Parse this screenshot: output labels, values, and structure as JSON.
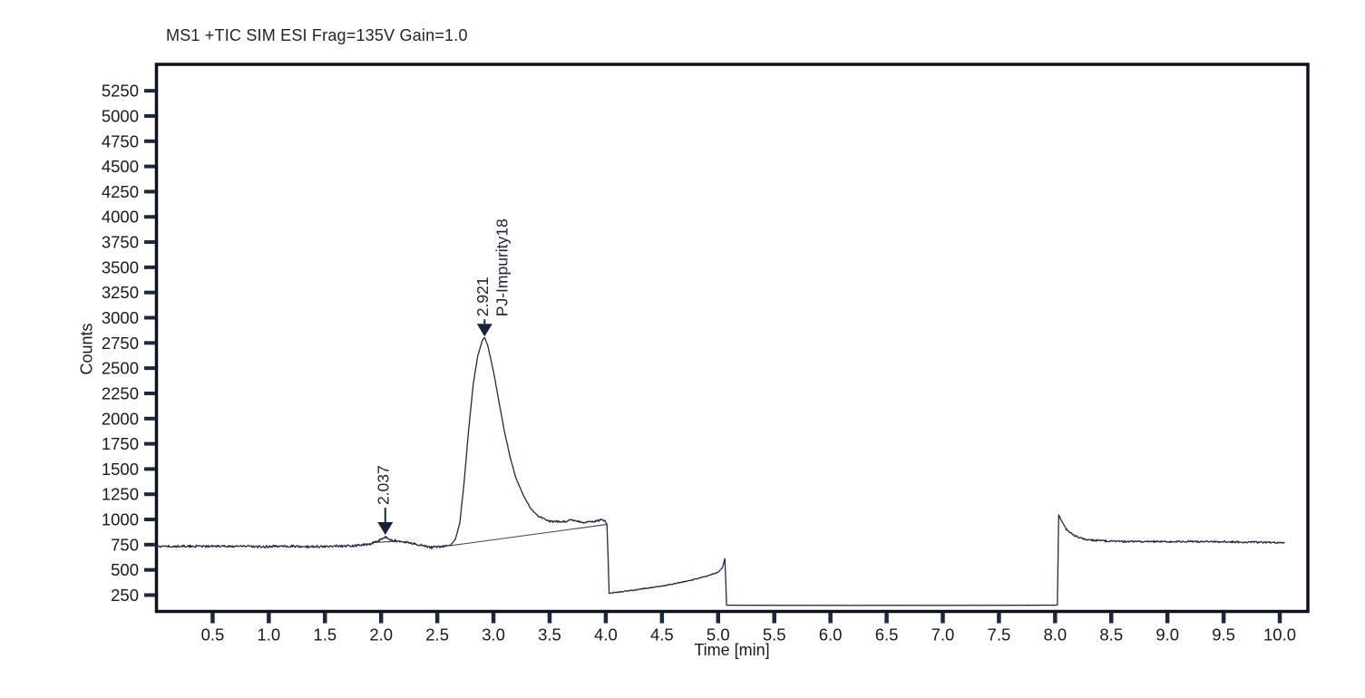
{
  "window": {
    "background": "#ffffff"
  },
  "chart_data": {
    "type": "line",
    "title": "MS1 +TIC SIM ESI Frag=135V Gain=1.0",
    "xlabel": "Time [min]",
    "ylabel": "Counts",
    "xlim": [
      0,
      10.25
    ],
    "ylim": [
      88,
      5512
    ],
    "xticks": [
      0.5,
      1.0,
      1.5,
      2.0,
      2.5,
      3.0,
      3.5,
      4.0,
      4.5,
      5.0,
      5.5,
      6.0,
      6.5,
      7.0,
      7.5,
      8.0,
      8.5,
      9.0,
      9.5,
      10.0
    ],
    "yticks": [
      250,
      500,
      750,
      1000,
      1250,
      1500,
      1750,
      2000,
      2250,
      2500,
      2750,
      3000,
      3250,
      3500,
      3750,
      4000,
      4250,
      4500,
      4750,
      5000,
      5250
    ],
    "grid": false,
    "legend": null,
    "colors": {
      "trace": "#1e2a44",
      "frame": "#0c1120",
      "tick": "#1c2740",
      "tick_label": "#1a1a1a",
      "annotation": "#18223a",
      "baseline_line": "#3a4458"
    },
    "series": [
      {
        "name": "TIC",
        "points": [
          [
            0,
            735
          ],
          [
            0.3,
            732
          ],
          [
            0.6,
            736
          ],
          [
            0.9,
            729
          ],
          [
            1.2,
            734
          ],
          [
            1.5,
            731
          ],
          [
            1.75,
            738
          ],
          [
            1.9,
            755
          ],
          [
            1.98,
            790
          ],
          [
            2.037,
            828
          ],
          [
            2.08,
            800
          ],
          [
            2.15,
            785
          ],
          [
            2.25,
            770
          ],
          [
            2.35,
            745
          ],
          [
            2.45,
            722
          ],
          [
            2.52,
            730
          ],
          [
            2.58,
            738
          ],
          [
            2.62,
            745
          ],
          [
            2.66,
            800
          ],
          [
            2.7,
            960
          ],
          [
            2.74,
            1380
          ],
          [
            2.78,
            1900
          ],
          [
            2.82,
            2340
          ],
          [
            2.86,
            2620
          ],
          [
            2.9,
            2770
          ],
          [
            2.921,
            2805
          ],
          [
            2.95,
            2720
          ],
          [
            3.0,
            2470
          ],
          [
            3.05,
            2160
          ],
          [
            3.1,
            1860
          ],
          [
            3.15,
            1610
          ],
          [
            3.2,
            1410
          ],
          [
            3.27,
            1230
          ],
          [
            3.33,
            1110
          ],
          [
            3.4,
            1030
          ],
          [
            3.5,
            980
          ],
          [
            3.6,
            975
          ],
          [
            3.7,
            995
          ],
          [
            3.8,
            970
          ],
          [
            3.9,
            980
          ],
          [
            3.98,
            995
          ],
          [
            4.01,
            955
          ],
          [
            4.02,
            640
          ],
          [
            4.03,
            268
          ],
          [
            4.15,
            285
          ],
          [
            4.35,
            315
          ],
          [
            4.55,
            350
          ],
          [
            4.75,
            395
          ],
          [
            4.9,
            440
          ],
          [
            5.0,
            475
          ],
          [
            5.04,
            525
          ],
          [
            5.06,
            612
          ],
          [
            5.068,
            400
          ],
          [
            5.075,
            150
          ],
          [
            5.3,
            149
          ],
          [
            6.0,
            148
          ],
          [
            7.0,
            148
          ],
          [
            8.0,
            150
          ],
          [
            8.02,
            152
          ],
          [
            8.026,
            600
          ],
          [
            8.032,
            1045
          ],
          [
            8.06,
            980
          ],
          [
            8.1,
            905
          ],
          [
            8.17,
            840
          ],
          [
            8.27,
            800
          ],
          [
            8.45,
            786
          ],
          [
            8.8,
            780
          ],
          [
            9.2,
            780
          ],
          [
            9.6,
            777
          ],
          [
            10.04,
            772
          ]
        ]
      }
    ],
    "noise_segments": [
      {
        "range": [
          0,
          2.58
        ],
        "amp": 14
      },
      {
        "range": [
          2.58,
          3.42
        ],
        "amp": 4
      },
      {
        "range": [
          3.42,
          4.0
        ],
        "amp": 13
      },
      {
        "range": [
          4.05,
          5.0
        ],
        "amp": 6
      },
      {
        "range": [
          5.1,
          8.0
        ],
        "amp": 1
      },
      {
        "range": [
          8.1,
          10.04
        ],
        "amp": 12
      }
    ],
    "integration_baselines": [
      {
        "from": [
          2.615,
          740
        ],
        "to": [
          4.005,
          950
        ]
      },
      {
        "from": [
          1.94,
          772
        ],
        "to": [
          2.13,
          783
        ]
      }
    ],
    "peaks": [
      {
        "rt": "2.037",
        "label": "",
        "t": 2.037,
        "apex_counts": 838,
        "stem": 16
      },
      {
        "rt": "2.921",
        "label": "PJ-Impurity18",
        "t": 2.921,
        "apex_counts": 2805,
        "stem": 5
      }
    ]
  }
}
